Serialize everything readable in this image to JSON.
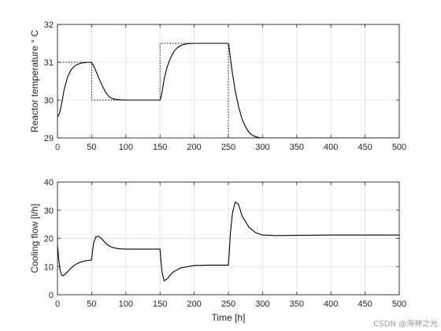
{
  "watermark": "CSDN @海神之光",
  "chart_data": [
    {
      "type": "line",
      "ylabel": "Reactor temperature ° C",
      "xlim": [
        0,
        500
      ],
      "ylim": [
        29,
        32
      ],
      "xticks": [
        "0",
        "50",
        "100",
        "150",
        "200",
        "250",
        "300",
        "350",
        "400",
        "450",
        "500"
      ],
      "yticks": [
        "29",
        "30",
        "31",
        "32"
      ],
      "grid": true,
      "series": [
        {
          "style": "solid",
          "color": "#000000",
          "x": [
            0,
            3,
            6,
            10,
            15,
            20,
            25,
            30,
            35,
            40,
            45,
            50,
            53,
            56,
            60,
            65,
            70,
            75,
            80,
            85,
            90,
            100,
            120,
            140,
            148,
            150,
            151,
            153,
            156,
            160,
            165,
            170,
            175,
            180,
            185,
            190,
            200,
            220,
            240,
            249,
            250,
            251,
            253,
            256,
            260,
            265,
            270,
            275,
            280,
            285,
            290,
            295,
            300,
            310,
            320,
            330,
            400,
            500
          ],
          "y": [
            29.55,
            29.65,
            29.9,
            30.3,
            30.62,
            30.8,
            30.9,
            30.95,
            30.98,
            30.99,
            31.0,
            30.99,
            30.9,
            30.78,
            30.6,
            30.4,
            30.22,
            30.1,
            30.04,
            30.02,
            30.01,
            30.0,
            30.0,
            30.0,
            30.0,
            30.0,
            30.04,
            30.22,
            30.55,
            30.85,
            31.1,
            31.28,
            31.38,
            31.44,
            31.47,
            31.49,
            31.5,
            31.5,
            31.5,
            31.5,
            31.5,
            31.4,
            31.1,
            30.7,
            30.25,
            29.82,
            29.5,
            29.3,
            29.15,
            29.07,
            29.03,
            29.01,
            29.0,
            29.0,
            29.0,
            29.0,
            29.0,
            29.0
          ]
        },
        {
          "style": "dotted",
          "color": "#000000",
          "x": [
            0,
            50,
            50,
            150,
            150,
            250,
            250,
            300
          ],
          "y": [
            31,
            31,
            30,
            30,
            31.5,
            31.5,
            29,
            29
          ]
        }
      ]
    },
    {
      "type": "line",
      "xlabel": "Time [h]",
      "ylabel": "Cooling flow  [l/h]",
      "xlim": [
        0,
        500
      ],
      "ylim": [
        0,
        40
      ],
      "xticks": [
        "0",
        "50",
        "100",
        "150",
        "200",
        "250",
        "300",
        "350",
        "400",
        "450",
        "500"
      ],
      "yticks": [
        "0",
        "10",
        "20",
        "30",
        "40"
      ],
      "grid": true,
      "series": [
        {
          "style": "solid",
          "color": "#000000",
          "x": [
            0,
            2,
            4,
            6,
            8,
            10,
            15,
            20,
            25,
            30,
            35,
            40,
            45,
            49,
            50,
            51,
            53,
            56,
            60,
            65,
            70,
            75,
            80,
            90,
            100,
            120,
            149,
            150,
            151,
            153,
            156,
            160,
            165,
            170,
            180,
            200,
            220,
            249,
            250,
            251,
            253,
            256,
            260,
            265,
            270,
            280,
            290,
            300,
            320,
            350,
            400,
            450,
            500
          ],
          "y": [
            18,
            12,
            8.5,
            7,
            6.8,
            7,
            8.2,
            9.5,
            10.5,
            11.2,
            11.7,
            12,
            12.2,
            12.3,
            12.5,
            15,
            18.5,
            20.5,
            20.8,
            19.8,
            18.4,
            17.4,
            16.8,
            16.3,
            16.2,
            16.2,
            16.2,
            16.2,
            13,
            8,
            5,
            5.5,
            7,
            8.2,
            9.5,
            10.4,
            10.5,
            10.5,
            10.5,
            14,
            22,
            29,
            33,
            32,
            28,
            24,
            22,
            21.2,
            21,
            21.1,
            21.2,
            21.2,
            21.2
          ]
        }
      ]
    }
  ]
}
